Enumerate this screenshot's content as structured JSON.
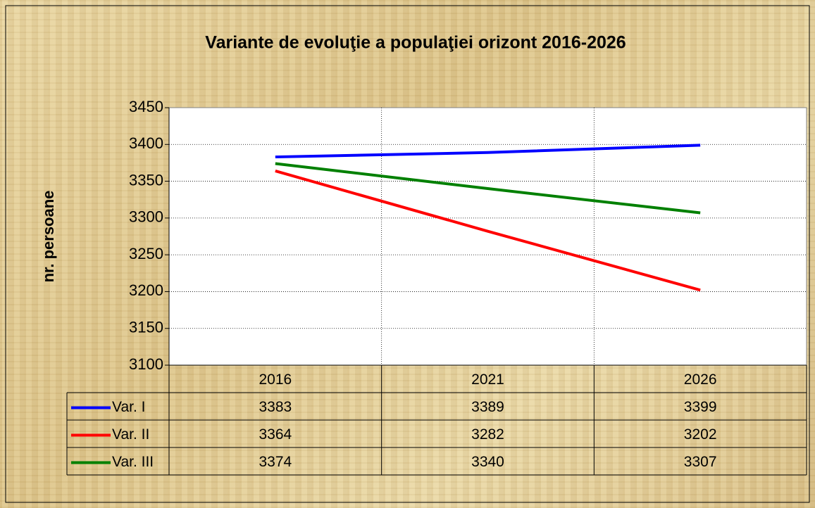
{
  "chart_data": {
    "type": "line",
    "title": "Variante de evoluţie a populaţiei orizont 2016-2026",
    "y_label": "nr. persoane",
    "categories": [
      "2016",
      "2021",
      "2026"
    ],
    "series": [
      {
        "name": "Var. I",
        "color": "#0000ff",
        "values": [
          3383,
          3389,
          3399
        ]
      },
      {
        "name": "Var. II",
        "color": "#ff0000",
        "values": [
          3364,
          3282,
          3202
        ]
      },
      {
        "name": "Var. III",
        "color": "#008000",
        "values": [
          3374,
          3340,
          3307
        ]
      }
    ],
    "ylim": [
      3100,
      3450
    ],
    "yticks": [
      3100,
      3150,
      3200,
      3250,
      3300,
      3350,
      3400,
      3450
    ],
    "grid": true,
    "data_table": true
  }
}
